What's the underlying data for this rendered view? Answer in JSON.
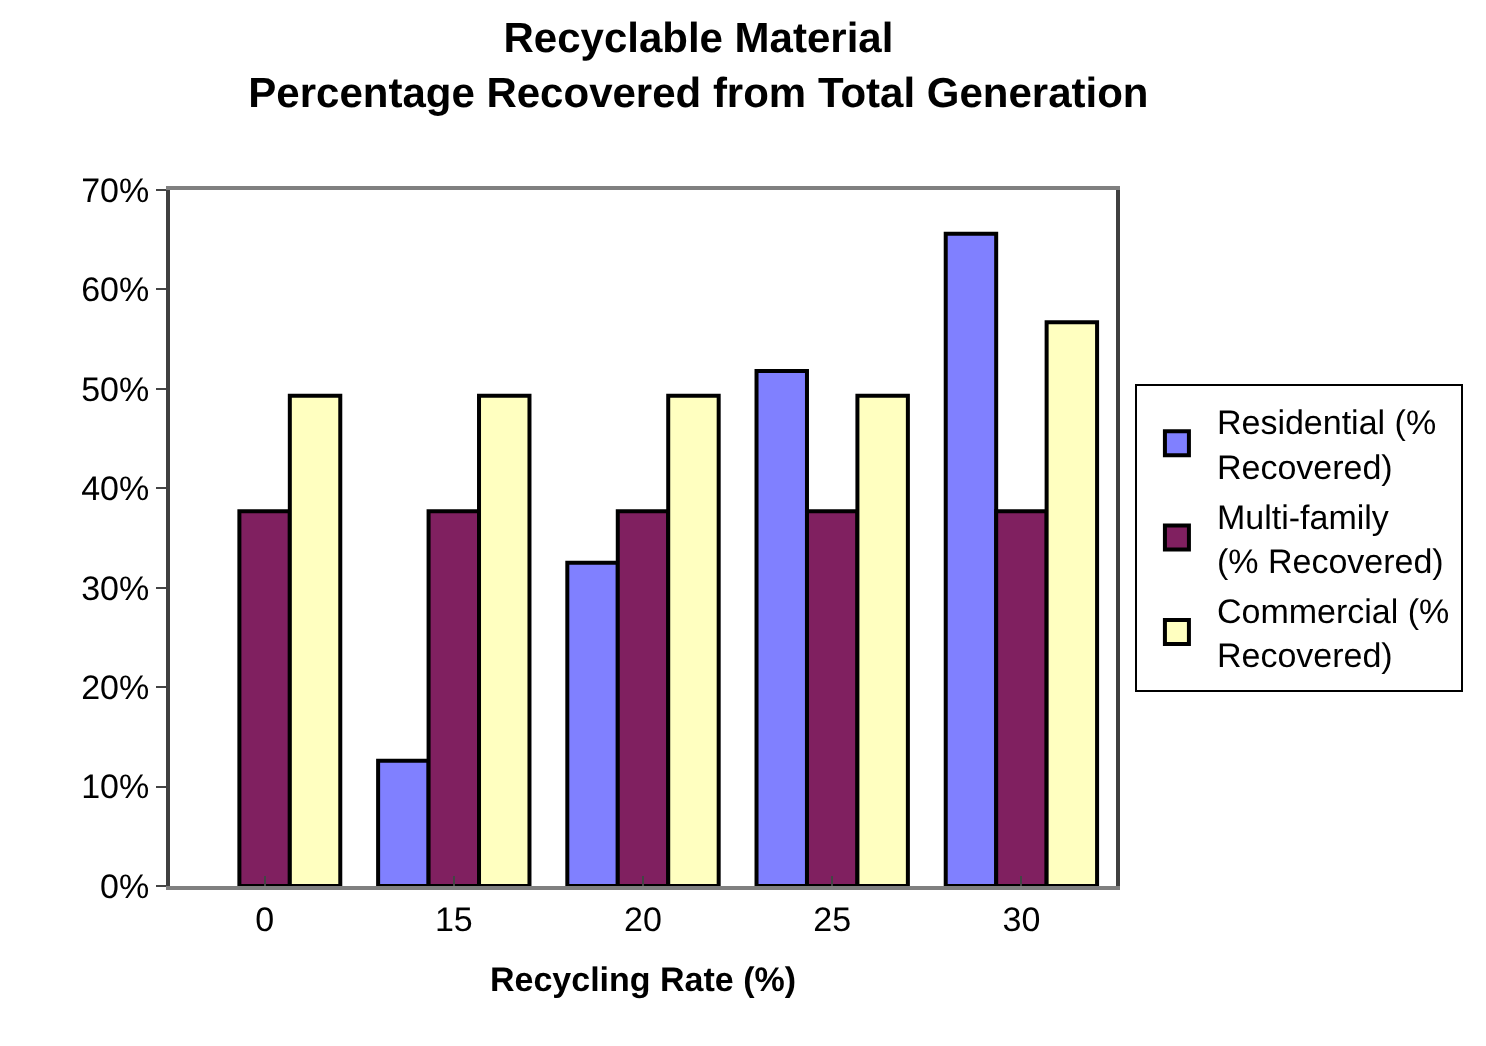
{
  "chart_data": {
    "type": "bar",
    "title": "Recyclable Material\nPercentage Recovered from Total Generation",
    "xlabel": "Recycling Rate (%)",
    "categories": [
      "0",
      "15",
      "20",
      "25",
      "30"
    ],
    "series": [
      {
        "name": "Residential (% Recovered)",
        "color": "#8080ff",
        "values": [
          null,
          12.6,
          32.5,
          51.8,
          65.6
        ]
      },
      {
        "name": "Multi-family (% Recovered)",
        "color": "#802060",
        "values": [
          37.7,
          37.7,
          37.7,
          37.7,
          37.7
        ]
      },
      {
        "name": "Commercial (% Recovered)",
        "color": "#ffffc0",
        "values": [
          49.3,
          49.3,
          49.3,
          49.3,
          56.7
        ]
      }
    ],
    "ylim": [
      0,
      70
    ],
    "yticks": [
      {
        "value": 0,
        "label": "0%"
      },
      {
        "value": 10,
        "label": "10%"
      },
      {
        "value": 20,
        "label": "20%"
      },
      {
        "value": 30,
        "label": "30%"
      },
      {
        "value": 40,
        "label": "40%"
      },
      {
        "value": 50,
        "label": "50%"
      },
      {
        "value": 60,
        "label": "60%"
      },
      {
        "value": 70,
        "label": "70%"
      }
    ],
    "legend": "right"
  }
}
